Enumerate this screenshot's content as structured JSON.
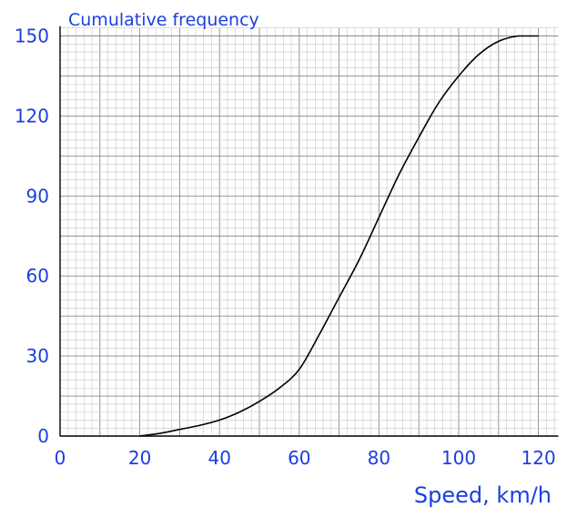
{
  "chart_data": {
    "type": "line",
    "title": "",
    "ylabel": "Cumulative frequency",
    "xlabel": "Speed, km/h",
    "xlim": [
      0,
      125
    ],
    "ylim": [
      0,
      150
    ],
    "x_ticks": [
      0,
      20,
      40,
      60,
      80,
      100,
      120
    ],
    "y_ticks": [
      0,
      30,
      60,
      90,
      120,
      150
    ],
    "grid": true,
    "colors": {
      "text": "#1a3fe0",
      "curve": "#000000"
    },
    "series": [
      {
        "x": [
          20,
          25,
          30,
          35,
          40,
          45,
          50,
          55,
          60,
          65,
          70,
          75,
          80,
          85,
          90,
          95,
          100,
          105,
          110,
          115,
          120
        ],
        "y": [
          0,
          1,
          2.5,
          4,
          6,
          9,
          13,
          18,
          25,
          38,
          52,
          66,
          82,
          98,
          112,
          125,
          135,
          143,
          148,
          150,
          150
        ]
      }
    ]
  }
}
